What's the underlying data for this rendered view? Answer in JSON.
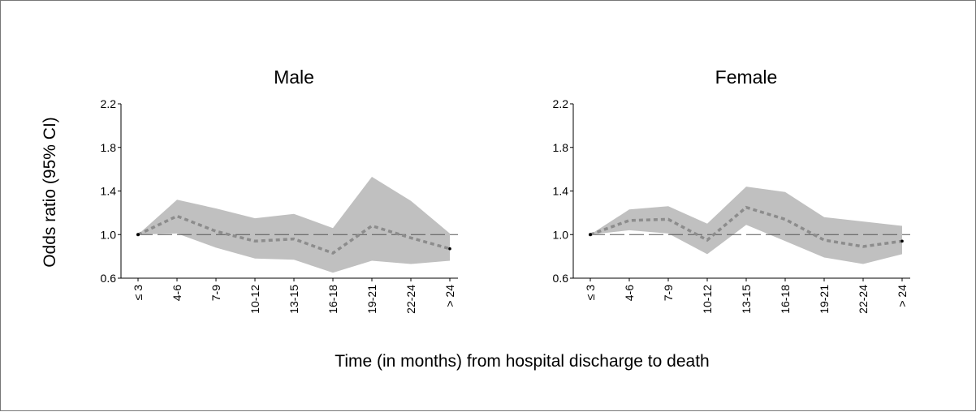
{
  "figure": {
    "ylabel": "Odds ratio (95% CI)",
    "xlabel": "Time (in months) from hospital discharge to death"
  },
  "colors": {
    "ci_band": "#c0c0c0",
    "estimate_line": "#8c8c8c",
    "reference_line": "#555555",
    "axis": "#000000"
  },
  "chart_data": [
    {
      "type": "area",
      "title": "Male",
      "categories": [
        "≤ 3",
        "4-6",
        "7-9",
        "10-12",
        "13-15",
        "16-18",
        "19-21",
        "22-24",
        "> 24"
      ],
      "ylim": [
        0.6,
        2.2
      ],
      "yticks": [
        "0.6",
        "1.0",
        "1.4",
        "1.8",
        "2.2"
      ],
      "reference_line": 1.0,
      "grid": false,
      "series": [
        {
          "role": "estimate",
          "values": [
            1.0,
            1.17,
            1.03,
            0.94,
            0.96,
            0.83,
            1.08,
            0.97,
            0.87
          ]
        },
        {
          "role": "ci_lower",
          "values": [
            1.0,
            1.01,
            0.88,
            0.78,
            0.77,
            0.65,
            0.76,
            0.73,
            0.76
          ]
        },
        {
          "role": "ci_upper",
          "values": [
            1.0,
            1.32,
            1.24,
            1.15,
            1.19,
            1.06,
            1.53,
            1.31,
            1.01
          ]
        }
      ]
    },
    {
      "type": "area",
      "title": "Female",
      "categories": [
        "≤ 3",
        "4-6",
        "7-9",
        "10-12",
        "13-15",
        "16-18",
        "19-21",
        "22-24",
        "> 24"
      ],
      "ylim": [
        0.6,
        2.2
      ],
      "yticks": [
        "0.6",
        "1.0",
        "1.4",
        "1.8",
        "2.2"
      ],
      "reference_line": 1.0,
      "grid": false,
      "series": [
        {
          "role": "estimate",
          "values": [
            1.0,
            1.13,
            1.14,
            0.95,
            1.25,
            1.14,
            0.95,
            0.89,
            0.94
          ]
        },
        {
          "role": "ci_lower",
          "values": [
            1.0,
            1.04,
            1.01,
            0.82,
            1.09,
            0.94,
            0.79,
            0.73,
            0.82
          ]
        },
        {
          "role": "ci_upper",
          "values": [
            1.0,
            1.23,
            1.26,
            1.1,
            1.44,
            1.39,
            1.16,
            1.12,
            1.08
          ]
        }
      ]
    }
  ]
}
